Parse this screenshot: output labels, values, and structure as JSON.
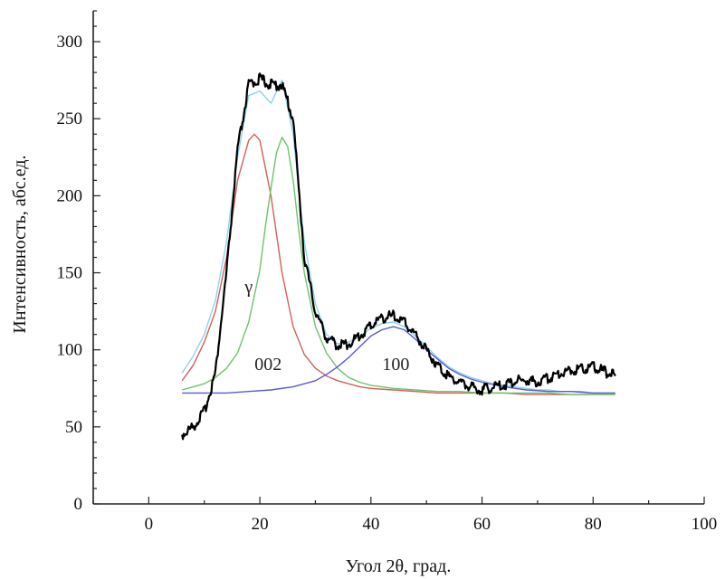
{
  "chart_data": {
    "type": "line",
    "xlabel": "Угол 2θ, град.",
    "ylabel": "Интенсивность, абс.ед.",
    "xlim": [
      -10,
      100
    ],
    "ylim": [
      0,
      320
    ],
    "x_ticks": [
      "0",
      "20",
      "40",
      "60",
      "80",
      "100"
    ],
    "x_tick_values": [
      0,
      20,
      40,
      60,
      80,
      100
    ],
    "y_ticks": [
      "0",
      "50",
      "100",
      "150",
      "200",
      "250",
      "300"
    ],
    "y_tick_values": [
      0,
      50,
      100,
      150,
      200,
      250,
      300
    ],
    "grid": false,
    "annotations": [
      {
        "text": "γ",
        "x": 18.0,
        "y": 137
      },
      {
        "text": "002",
        "x": 21.5,
        "y": 87
      },
      {
        "text": "100",
        "x": 44.5,
        "y": 87
      }
    ],
    "series": [
      {
        "color": "#000000",
        "x": [
          6,
          8,
          10,
          12,
          14,
          16,
          18,
          20,
          22,
          24,
          26,
          28,
          30,
          32,
          34,
          36,
          38,
          40,
          42,
          44,
          46,
          48,
          50,
          52,
          54,
          56,
          58,
          60,
          62,
          64,
          66,
          68,
          70,
          72,
          74,
          76,
          78,
          80,
          82,
          84
        ],
        "y": [
          45,
          50,
          60,
          85,
          150,
          230,
          272,
          276,
          272,
          272,
          250,
          160,
          125,
          108,
          103,
          104,
          109,
          116,
          121,
          122,
          118,
          110,
          100,
          90,
          83,
          79,
          76,
          74,
          76,
          77,
          80,
          80,
          79,
          82,
          85,
          87,
          88,
          89,
          86,
          83
        ]
      },
      {
        "color": "#8fd3e8",
        "x": [
          6,
          8,
          10,
          12,
          14,
          16,
          18,
          20,
          22,
          24,
          26,
          28,
          30,
          32,
          34,
          36,
          38,
          40,
          42,
          44,
          46,
          48,
          50,
          52,
          54,
          56,
          58,
          60,
          62,
          64,
          66,
          68,
          70,
          72,
          74,
          76,
          78,
          80,
          82,
          84
        ],
        "y": [
          85,
          96,
          110,
          132,
          170,
          225,
          265,
          268,
          260,
          275,
          240,
          170,
          130,
          110,
          104,
          105,
          109,
          114,
          117,
          118,
          115,
          109,
          102,
          95,
          89,
          85,
          82,
          80,
          78,
          77,
          76,
          75,
          74,
          74,
          73,
          73,
          73,
          72,
          72,
          72
        ]
      },
      {
        "color": "#d0605a",
        "x": [
          6,
          8,
          10,
          12,
          14,
          16,
          18,
          19,
          20,
          22,
          24,
          26,
          28,
          30,
          32,
          34,
          36,
          38,
          40,
          44,
          48,
          52,
          56,
          60,
          64,
          68,
          72,
          76,
          80,
          84
        ],
        "y": [
          80,
          90,
          105,
          125,
          160,
          210,
          236,
          240,
          236,
          200,
          150,
          115,
          97,
          88,
          83,
          80,
          78,
          76,
          75,
          74,
          73,
          72,
          72,
          72,
          72,
          71,
          71,
          71,
          71,
          71
        ]
      },
      {
        "color": "#6cc46c",
        "x": [
          6,
          8,
          10,
          12,
          14,
          16,
          18,
          20,
          21,
          22,
          23,
          24,
          25,
          26,
          27,
          28,
          30,
          32,
          34,
          36,
          38,
          40,
          44,
          48,
          52,
          56,
          60,
          64,
          68,
          72,
          76,
          80,
          84
        ],
        "y": [
          74,
          76,
          78,
          82,
          88,
          98,
          118,
          152,
          180,
          205,
          228,
          238,
          232,
          210,
          178,
          150,
          115,
          98,
          88,
          82,
          79,
          77,
          75,
          74,
          73,
          73,
          72,
          72,
          72,
          72,
          71,
          71,
          71
        ]
      },
      {
        "color": "#5a5ad2",
        "x": [
          6,
          10,
          14,
          18,
          22,
          26,
          30,
          32,
          34,
          36,
          38,
          40,
          42,
          44,
          46,
          48,
          50,
          52,
          54,
          56,
          58,
          60,
          64,
          68,
          72,
          76,
          80,
          84
        ],
        "y": [
          72,
          72,
          72,
          73,
          74,
          76,
          80,
          84,
          89,
          95,
          102,
          109,
          113,
          115,
          113,
          107,
          100,
          94,
          88,
          84,
          81,
          79,
          76,
          74,
          73,
          73,
          72,
          72
        ]
      }
    ]
  }
}
